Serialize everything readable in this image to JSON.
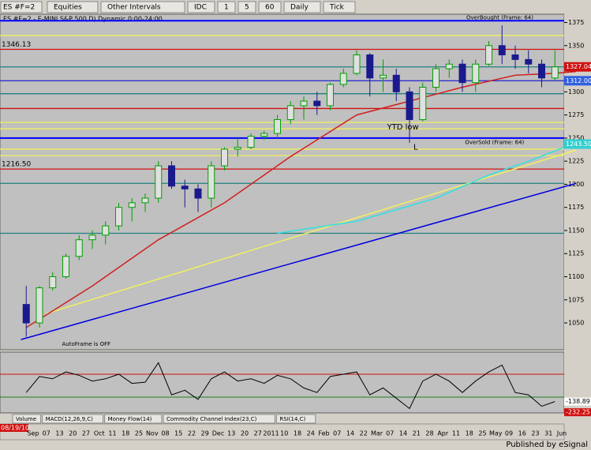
{
  "toolbar": {
    "symbol": "ES #F=2",
    "buttons": [
      "Equities",
      "Other Intervals",
      "IDC",
      "1",
      "5",
      "60",
      "Daily",
      "Tick"
    ]
  },
  "chart_data": {
    "type": "candlestick",
    "title": "ES #F=2 - E-MINI S&P 500,D) Dynamic,0:00-24:00",
    "first_date": "08/19/10",
    "x_labels": [
      "Sep",
      "07",
      "13",
      "20",
      "27",
      "Oct",
      "11",
      "18",
      "25",
      "Nov",
      "08",
      "15",
      "22",
      "29",
      "Dec",
      "13",
      "20",
      "27",
      "2011",
      "10",
      "18",
      "24",
      "Feb",
      "07",
      "14",
      "22",
      "Mar",
      "07",
      "14",
      "21",
      "28",
      "Apr",
      "11",
      "18",
      "25",
      "May",
      "09",
      "16",
      "23",
      "31",
      "Jun"
    ],
    "open": [
      1070,
      1050,
      1088,
      1100,
      1122,
      1140,
      1145,
      1155,
      1175,
      1180,
      1185,
      1220,
      1198,
      1195,
      1185,
      1220,
      1238,
      1240,
      1252,
      1255,
      1270,
      1285,
      1290,
      1285,
      1308,
      1320,
      1340,
      1315,
      1318,
      1300,
      1270,
      1305,
      1325,
      1330,
      1310,
      1330,
      1350,
      1340,
      1335,
      1330,
      1315
    ],
    "high": [
      1090,
      1090,
      1105,
      1125,
      1145,
      1150,
      1160,
      1180,
      1185,
      1190,
      1225,
      1225,
      1205,
      1200,
      1225,
      1240,
      1250,
      1255,
      1258,
      1275,
      1290,
      1295,
      1300,
      1310,
      1325,
      1345,
      1342,
      1335,
      1325,
      1305,
      1310,
      1330,
      1335,
      1335,
      1335,
      1355,
      1372,
      1350,
      1345,
      1335,
      1345
    ],
    "low": [
      1035,
      1045,
      1085,
      1098,
      1118,
      1130,
      1135,
      1150,
      1160,
      1170,
      1180,
      1195,
      1175,
      1170,
      1175,
      1215,
      1230,
      1238,
      1248,
      1250,
      1265,
      1270,
      1275,
      1280,
      1305,
      1318,
      1295,
      1300,
      1290,
      1245,
      1268,
      1300,
      1315,
      1300,
      1300,
      1328,
      1330,
      1325,
      1320,
      1305,
      1312
    ],
    "close": [
      1050,
      1088,
      1100,
      1122,
      1140,
      1145,
      1155,
      1175,
      1180,
      1185,
      1220,
      1198,
      1195,
      1185,
      1220,
      1238,
      1240,
      1252,
      1255,
      1270,
      1285,
      1290,
      1285,
      1308,
      1320,
      1340,
      1315,
      1318,
      1300,
      1270,
      1305,
      1325,
      1330,
      1310,
      1330,
      1350,
      1340,
      1335,
      1330,
      1315,
      1327
    ],
    "up_color": "#00a000",
    "down_color": "#1a1a8c",
    "ylim": [
      1021,
      1384
    ],
    "yticks": [
      1050,
      1075,
      1100,
      1125,
      1150,
      1175,
      1200,
      1225,
      1250,
      1275,
      1300,
      1325,
      1350,
      1375
    ],
    "levels": [
      {
        "value": 1377,
        "color": "#0000ff"
      },
      {
        "value": 1361,
        "color": "#f0f060"
      },
      {
        "value": 1346,
        "color": "#d01010"
      },
      {
        "value": 1327,
        "color": "#208080"
      },
      {
        "value": 1312,
        "color": "#3030d0"
      },
      {
        "value": 1298,
        "color": "#208080"
      },
      {
        "value": 1282,
        "color": "#d01010"
      },
      {
        "value": 1267,
        "color": "#f0f060"
      },
      {
        "value": 1260,
        "color": "#f0f060"
      },
      {
        "value": 1250,
        "color": "#0000ff"
      },
      {
        "value": 1238,
        "color": "#f0f060"
      },
      {
        "value": 1231,
        "color": "#f0f060"
      },
      {
        "value": 1216.5,
        "color": "#d01010"
      },
      {
        "value": 1201,
        "color": "#208080"
      },
      {
        "value": 1147,
        "color": "#208080"
      }
    ],
    "left_labels": [
      {
        "value": 1346.13,
        "label": "1346.13"
      },
      {
        "value": 1216.5,
        "label": "1216.50"
      }
    ],
    "right_labels": [
      {
        "value": 1327.04,
        "label": "1327.04",
        "color": "#d01010"
      },
      {
        "value": 1312,
        "label": "1312.00",
        "color": "#3060e0"
      },
      {
        "value": 1243.5,
        "label": "1243.50",
        "color": "#30d0d0"
      }
    ],
    "trendlines": [
      {
        "color": "#0000e0",
        "x": [
          -1.4,
          40.6
        ],
        "y": [
          1032,
          1201
        ]
      },
      {
        "color": "#f0f060",
        "x": [
          0.5,
          40.6
        ],
        "y": [
          1060,
          1237
        ]
      },
      {
        "color": "#30e0e0",
        "x": [
          18,
          24,
          30,
          34,
          37,
          40.6
        ],
        "y": [
          1147,
          1160,
          1185,
          1210,
          1225,
          1245
        ]
      },
      {
        "color": "#d02020",
        "x": [
          -1,
          4,
          9,
          14,
          19,
          24,
          28,
          32,
          36,
          39,
          40.6
        ],
        "y": [
          1045,
          1090,
          1140,
          1180,
          1230,
          1275,
          1290,
          1305,
          1318,
          1320,
          1322
        ]
      }
    ],
    "annotations": [
      {
        "text": "YTD low",
        "x": 26.3,
        "y": 1262
      },
      {
        "text": "L",
        "x": 28.3,
        "y": 1240
      },
      {
        "text": "OverBought (Frame: 64)",
        "x": 32.3,
        "y": 1380
      },
      {
        "text": "OverSold (Frame: 64)",
        "x": 32.2,
        "y": 1245
      },
      {
        "text": "AutoFrame is OFF",
        "x": 1.7,
        "y": 1027
      }
    ],
    "oscillator": {
      "type": "line",
      "color": "#000000",
      "values": [
        -60,
        80,
        60,
        120,
        90,
        40,
        60,
        100,
        20,
        30,
        200,
        -80,
        -40,
        -120,
        60,
        120,
        40,
        60,
        20,
        90,
        60,
        -20,
        -60,
        80,
        100,
        120,
        -80,
        -20,
        -110,
        -200,
        40,
        100,
        40,
        -60,
        40,
        120,
        180,
        -60,
        -80,
        -180,
        -138.89
      ],
      "ylim": [
        -238,
        293
      ],
      "levels": [
        {
          "value": 100,
          "color": "#d01010"
        },
        {
          "value": -100,
          "color": "#208020"
        }
      ],
      "right_labels": [
        {
          "value": -138.89,
          "label": "-138.89"
        },
        {
          "value": -232.25,
          "label": "-232.25"
        }
      ]
    },
    "tabs": [
      "Volume",
      "MACD(12,26,9,C)",
      "Money Flow(14)",
      "Commodity Channel Index(23,C)",
      "RSI(14,C)"
    ]
  },
  "footer": "Published by eSignal"
}
